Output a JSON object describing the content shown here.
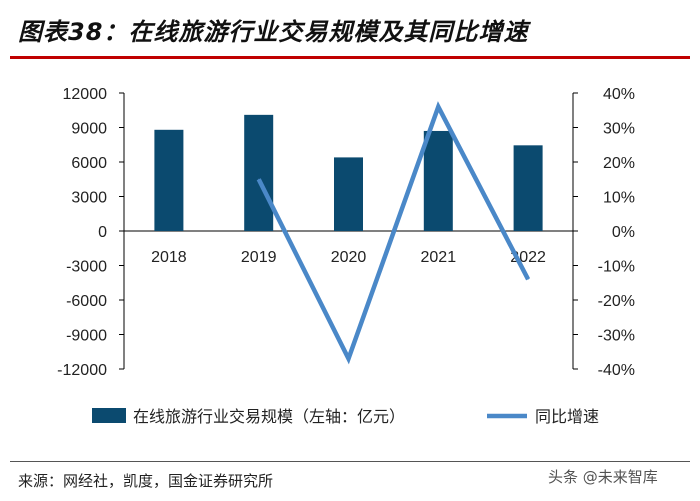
{
  "title": "图表38：在线旅游行业交易规模及其同比增速",
  "source": "来源：网经社，凯度，国金证券研究所",
  "watermark": "头条 @未来智库",
  "colors": {
    "bar": "#0b4a6f",
    "line": "#4a88c8",
    "title_rule": "#c00000"
  },
  "chart_data": {
    "type": "bar+line",
    "categories": [
      "2018",
      "2019",
      "2020",
      "2021",
      "2022"
    ],
    "series": [
      {
        "name": "在线旅游行业交易规模（左轴：亿元）",
        "type": "bar",
        "axis": "left",
        "values": [
          8800,
          10100,
          6400,
          8700,
          7450
        ]
      },
      {
        "name": "同比增速",
        "type": "line",
        "axis": "right",
        "values": [
          null,
          15,
          -37,
          36,
          -14
        ]
      }
    ],
    "left_axis": {
      "ylim": [
        -12000,
        12000
      ],
      "ticks": [
        "12000",
        "9000",
        "6000",
        "3000",
        "0",
        "-3000",
        "-6000",
        "-9000",
        "-12000"
      ]
    },
    "right_axis": {
      "ylim": [
        -40,
        40
      ],
      "ticks": [
        "40%",
        "30%",
        "20%",
        "10%",
        "0%",
        "-10%",
        "-20%",
        "-30%",
        "-40%"
      ]
    },
    "legend": [
      "在线旅游行业交易规模（左轴：亿元）",
      "同比增速"
    ],
    "legend_position": "bottom",
    "grid": false
  }
}
